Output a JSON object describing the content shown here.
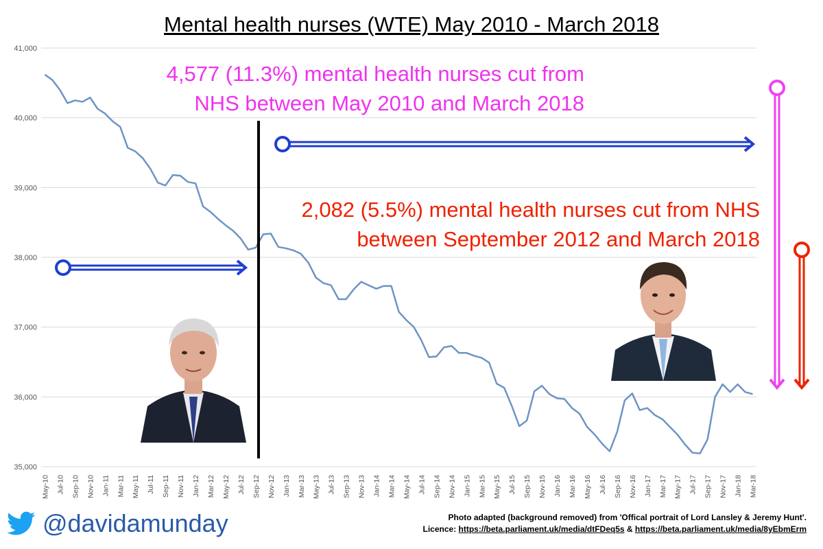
{
  "chart_data": {
    "type": "line",
    "title": "Mental health nurses (WTE) May 2010 - March 2018",
    "ylim": [
      35000,
      41000
    ],
    "yticks": [
      35000,
      36000,
      37000,
      38000,
      39000,
      40000,
      41000
    ],
    "ytick_labels": [
      "35,000",
      "36,000",
      "37,000",
      "38,000",
      "39,000",
      "40,000",
      "41,000"
    ],
    "grid": true,
    "x_tick_labels": [
      "May-10",
      "Jul-10",
      "Sep-10",
      "Nov-10",
      "Jan-11",
      "Mar-11",
      "May-11",
      "Jul-11",
      "Sep-11",
      "Nov-11",
      "Jan-12",
      "Mar-12",
      "May-12",
      "Jul-12",
      "Sep-12",
      "Nov-12",
      "Jan-13",
      "Mar-13",
      "May-13",
      "Jul-13",
      "Sep-13",
      "Nov-13",
      "Jan-14",
      "Mar-14",
      "May-14",
      "Jul-14",
      "Sep-14",
      "Nov-14",
      "Jan-15",
      "Mar-15",
      "May-15",
      "Jul-15",
      "Sep-15",
      "Nov-15",
      "Jan-16",
      "Mar-16",
      "May-16",
      "Jul-16",
      "Sep-16",
      "Nov-16",
      "Jan-17",
      "Mar-17",
      "May-17",
      "Jul-17",
      "Sep-17",
      "Nov-17",
      "Jan-18",
      "Mar-18"
    ],
    "series": [
      {
        "color": "#6e94c4",
        "values": [
          40620,
          40540,
          40400,
          40210,
          40250,
          40230,
          40290,
          40130,
          40060,
          39950,
          39870,
          39570,
          39520,
          39420,
          39270,
          39070,
          39030,
          39180,
          39170,
          39080,
          39060,
          38730,
          38650,
          38550,
          38460,
          38380,
          38270,
          38110,
          38140,
          38330,
          38340,
          38150,
          38130,
          38100,
          38050,
          37920,
          37710,
          37630,
          37600,
          37400,
          37400,
          37540,
          37650,
          37600,
          37550,
          37590,
          37590,
          37220,
          37100,
          37000,
          36810,
          36570,
          36580,
          36710,
          36730,
          36630,
          36630,
          36590,
          36560,
          36490,
          36190,
          36130,
          35870,
          35580,
          35660,
          36080,
          36160,
          36040,
          35980,
          35970,
          35840,
          35760,
          35570,
          35460,
          35330,
          35220,
          35500,
          35950,
          36050,
          35810,
          35840,
          35740,
          35680,
          35570,
          35460,
          35320,
          35200,
          35190,
          35390,
          36000,
          36180,
          36070,
          36180,
          36070,
          36040
        ]
      }
    ],
    "annotations": [
      {
        "text_line1": "4,577 (11.3%) mental health nurses cut from",
        "text_line2": "NHS between May 2010 and March 2018",
        "color": "#ee33ee"
      },
      {
        "text_line1": "2,082 (5.5%) mental health nurses cut from NHS",
        "text_line2": "between September 2012 and March 2018",
        "color": "#ee2200"
      }
    ],
    "arrow_colors": {
      "blue": "#1f3fcf",
      "pink": "#ee44ee",
      "red": "#ee2200",
      "divider": "#000000"
    }
  },
  "footer": {
    "handle": "@davidamunday",
    "twitter_icon": "twitter-bird-icon",
    "twitter_color": "#1da1f2",
    "credit_line1": "Photo adapted (background removed) from 'Offical portrait of Lord Lansley & Jeremy Hunt'.",
    "credit_line2_prefix": "Licence: ",
    "credit_link1": "https://beta.parliament.uk/media/dtFDeq5s",
    "credit_and": " & ",
    "credit_link2": "https://beta.parliament.uk/media/8yEbmErm"
  }
}
